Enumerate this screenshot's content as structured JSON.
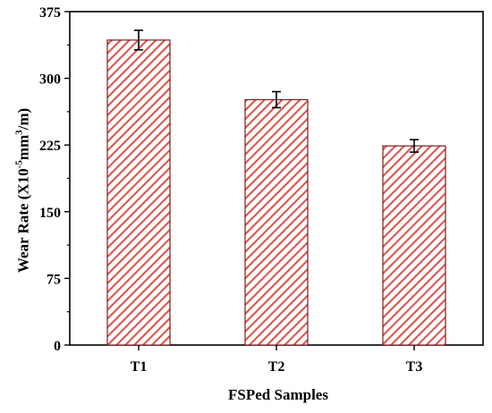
{
  "chart_data": {
    "type": "bar",
    "categories": [
      "T1",
      "T2",
      "T3"
    ],
    "values": [
      343,
      276,
      224
    ],
    "errors": [
      11,
      9,
      7
    ],
    "title": "",
    "xlabel": "FSPed Samples",
    "ylabel": {
      "prefix": "Wear Rate  (X10",
      "exp1": "-5",
      "mid": "mm",
      "exp2": "3",
      "suffix": "/m)"
    },
    "ylim": [
      0,
      375
    ],
    "yticks": [
      "0",
      "75",
      "150",
      "225",
      "300",
      "375"
    ],
    "bar_fill": "hatched",
    "bar_stroke": "#7a1f1f",
    "hatch_color": "#d9574f",
    "grid": false,
    "legend": "none"
  }
}
